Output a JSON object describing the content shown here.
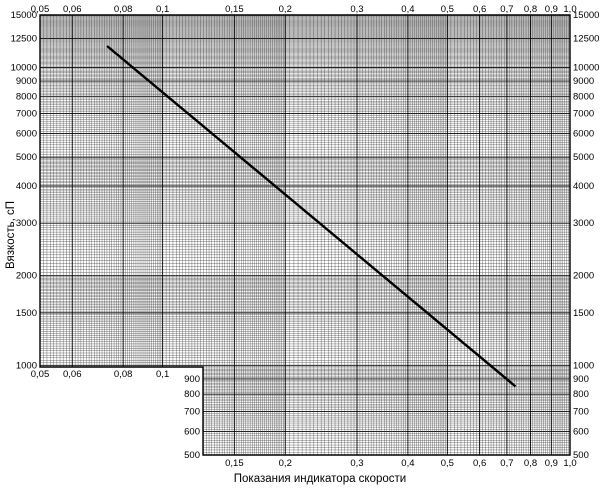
{
  "chart_data": {
    "type": "line",
    "title": "",
    "xlabel": "Показания индикатора скорости",
    "ylabel": "Вязкость, сП",
    "x_scale": "log",
    "y_scale": "log",
    "grid": true,
    "xlim": [
      0.05,
      1.0
    ],
    "ylim": [
      500,
      15000
    ],
    "ylim_lower_panel": [
      500,
      1000
    ],
    "xlim_lower_panel": [
      0.15,
      1.0
    ],
    "x_ticks_top": [
      "0,05",
      "0,06",
      "0,08",
      "0,1",
      "0,15",
      "0,2",
      "0,3",
      "0,4",
      "0,5",
      "0,6",
      "0,7",
      "0,8",
      "0,9",
      "1,0"
    ],
    "x_ticks_middle": [
      "0,05",
      "0,06",
      "0,08",
      "0,1"
    ],
    "x_ticks_bottom": [
      "0,15",
      "0,2",
      "0,3",
      "0,4",
      "0,5",
      "0,6",
      "0,7",
      "0,8",
      "0,9",
      "1,0"
    ],
    "y_ticks": [
      "15000",
      "12500",
      "10000",
      "9000",
      "8000",
      "7000",
      "6000",
      "5000",
      "4000",
      "3000",
      "2000",
      "1500",
      "1000",
      "900",
      "800",
      "700",
      "600",
      "500"
    ],
    "y_ticks_right": [
      "15000",
      "12500",
      "10000",
      "9000",
      "8000",
      "7000",
      "6000",
      "5000",
      "4000",
      "3000",
      "2000",
      "1500",
      "1000",
      "900",
      "800",
      "700",
      "600",
      "500"
    ],
    "y_ticks_lower_left": [
      "900",
      "800",
      "700",
      "600",
      "500"
    ],
    "series": [
      {
        "x": [
          0.073,
          0.735
        ],
        "y": [
          11800,
          850
        ]
      }
    ]
  }
}
